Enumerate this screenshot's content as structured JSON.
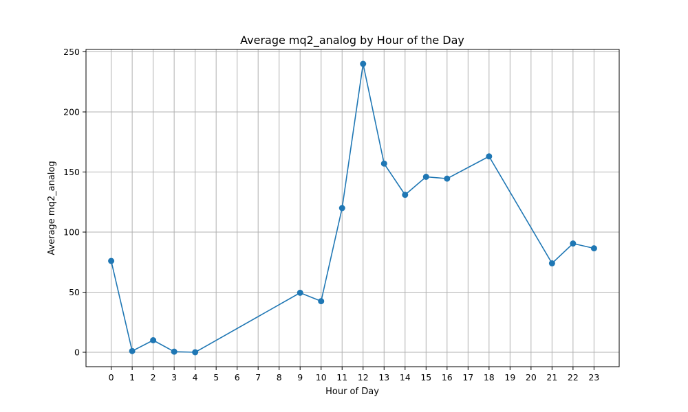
{
  "chart_data": {
    "type": "line",
    "title": "Average mq2_analog by Hour of the Day",
    "xlabel": "Hour of Day",
    "ylabel": "Average mq2_analog",
    "xticks": [
      "0",
      "1",
      "2",
      "3",
      "4",
      "5",
      "6",
      "7",
      "8",
      "9",
      "10",
      "11",
      "12",
      "13",
      "14",
      "15",
      "16",
      "17",
      "18",
      "19",
      "20",
      "21",
      "22",
      "23"
    ],
    "yticks": [
      "0",
      "50",
      "100",
      "150",
      "200",
      "250"
    ],
    "xlim": [
      -1.2,
      24.2
    ],
    "ylim": [
      -12,
      252
    ],
    "grid": true,
    "color": "#1f77b4",
    "series": [
      {
        "x": [
          0,
          1,
          2,
          3,
          4,
          9,
          10,
          11,
          12,
          13,
          14,
          15,
          16,
          18,
          21,
          22,
          23
        ],
        "y": [
          76,
          1,
          10,
          0.5,
          0,
          49.5,
          42.5,
          120,
          240,
          157,
          131,
          146,
          144.5,
          163,
          74,
          90.5,
          86.5
        ]
      }
    ]
  }
}
